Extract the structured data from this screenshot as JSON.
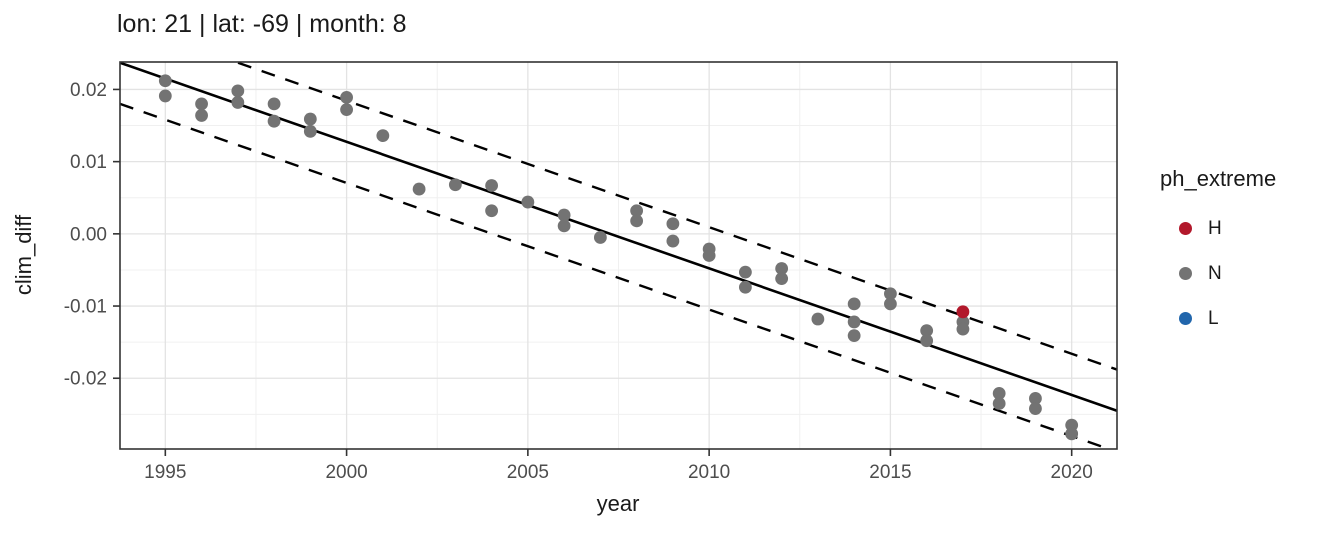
{
  "title": "lon: 21 | lat: -69 | month: 8",
  "legend": {
    "title": "ph_extreme",
    "items": [
      {
        "label": "H",
        "color": "#B2182B"
      },
      {
        "label": "N",
        "color": "#737373"
      },
      {
        "label": "L",
        "color": "#2166AC"
      }
    ]
  },
  "colors": {
    "panel_border": "#333333",
    "grid_major": "#E3E3E3",
    "grid_minor": "#F0F0F0",
    "tick": "#333333",
    "tick_label": "#4D4D4D",
    "line": "#000000"
  },
  "chart_data": {
    "type": "scatter",
    "title": "lon: 21 | lat: -69 | month: 8",
    "xlabel": "year",
    "ylabel": "clim_diff",
    "xlim": [
      1993.75,
      2021.25
    ],
    "ylim": [
      -0.0298,
      0.0238
    ],
    "x_ticks": [
      1995,
      2000,
      2005,
      2010,
      2015,
      2020
    ],
    "x_tick_labels": [
      "1995",
      "2000",
      "2005",
      "2010",
      "2015",
      "2020"
    ],
    "y_ticks": [
      0.02,
      0.01,
      0.0,
      -0.01,
      -0.02
    ],
    "y_tick_labels": [
      "0.02",
      "0.01",
      "0.00",
      "-0.01",
      "-0.02"
    ],
    "x_minor": [
      1997.5,
      2002.5,
      2007.5,
      2012.5,
      2017.5
    ],
    "y_minor": [
      0.015,
      0.005,
      -0.005,
      -0.015,
      -0.025
    ],
    "grid": true,
    "legend_position": "right",
    "series": [
      {
        "name": "N",
        "color": "#737373",
        "points": [
          [
            1995,
            0.0212
          ],
          [
            1995,
            0.0191
          ],
          [
            1996,
            0.018
          ],
          [
            1996,
            0.0164
          ],
          [
            1997,
            0.0198
          ],
          [
            1997,
            0.0182
          ],
          [
            1998,
            0.018
          ],
          [
            1998,
            0.0156
          ],
          [
            1999,
            0.0159
          ],
          [
            1999,
            0.0142
          ],
          [
            2000,
            0.0189
          ],
          [
            2000,
            0.0172
          ],
          [
            2001,
            0.0136
          ],
          [
            2002,
            0.0062
          ],
          [
            2003,
            0.0068
          ],
          [
            2004,
            0.0067
          ],
          [
            2004,
            0.0032
          ],
          [
            2005,
            0.0044
          ],
          [
            2006,
            0.0026
          ],
          [
            2006,
            0.0011
          ],
          [
            2007,
            -0.0005
          ],
          [
            2008,
            0.0032
          ],
          [
            2008,
            0.0018
          ],
          [
            2009,
            0.0014
          ],
          [
            2009,
            -0.001
          ],
          [
            2010,
            -0.0021
          ],
          [
            2010,
            -0.003
          ],
          [
            2011,
            -0.0053
          ],
          [
            2011,
            -0.0074
          ],
          [
            2012,
            -0.0048
          ],
          [
            2012,
            -0.0062
          ],
          [
            2013,
            -0.0118
          ],
          [
            2014,
            -0.0097
          ],
          [
            2014,
            -0.0122
          ],
          [
            2014,
            -0.0141
          ],
          [
            2015,
            -0.0083
          ],
          [
            2015,
            -0.0097
          ],
          [
            2016,
            -0.0134
          ],
          [
            2016,
            -0.0148
          ],
          [
            2017,
            -0.0122
          ],
          [
            2017,
            -0.0132
          ],
          [
            2018,
            -0.0221
          ],
          [
            2018,
            -0.0235
          ],
          [
            2019,
            -0.0228
          ],
          [
            2019,
            -0.0242
          ],
          [
            2020,
            -0.0265
          ],
          [
            2020,
            -0.0277
          ]
        ]
      },
      {
        "name": "H",
        "color": "#B2182B",
        "points": [
          [
            2017,
            -0.0108
          ]
        ]
      },
      {
        "name": "L",
        "color": "#2166AC",
        "points": []
      }
    ],
    "trend_line": {
      "style": "solid",
      "x": [
        1993.75,
        2021.25
      ],
      "y": [
        0.0237,
        -0.0245
      ]
    },
    "bands": {
      "style": "dashed",
      "offset": 0.0057
    }
  }
}
